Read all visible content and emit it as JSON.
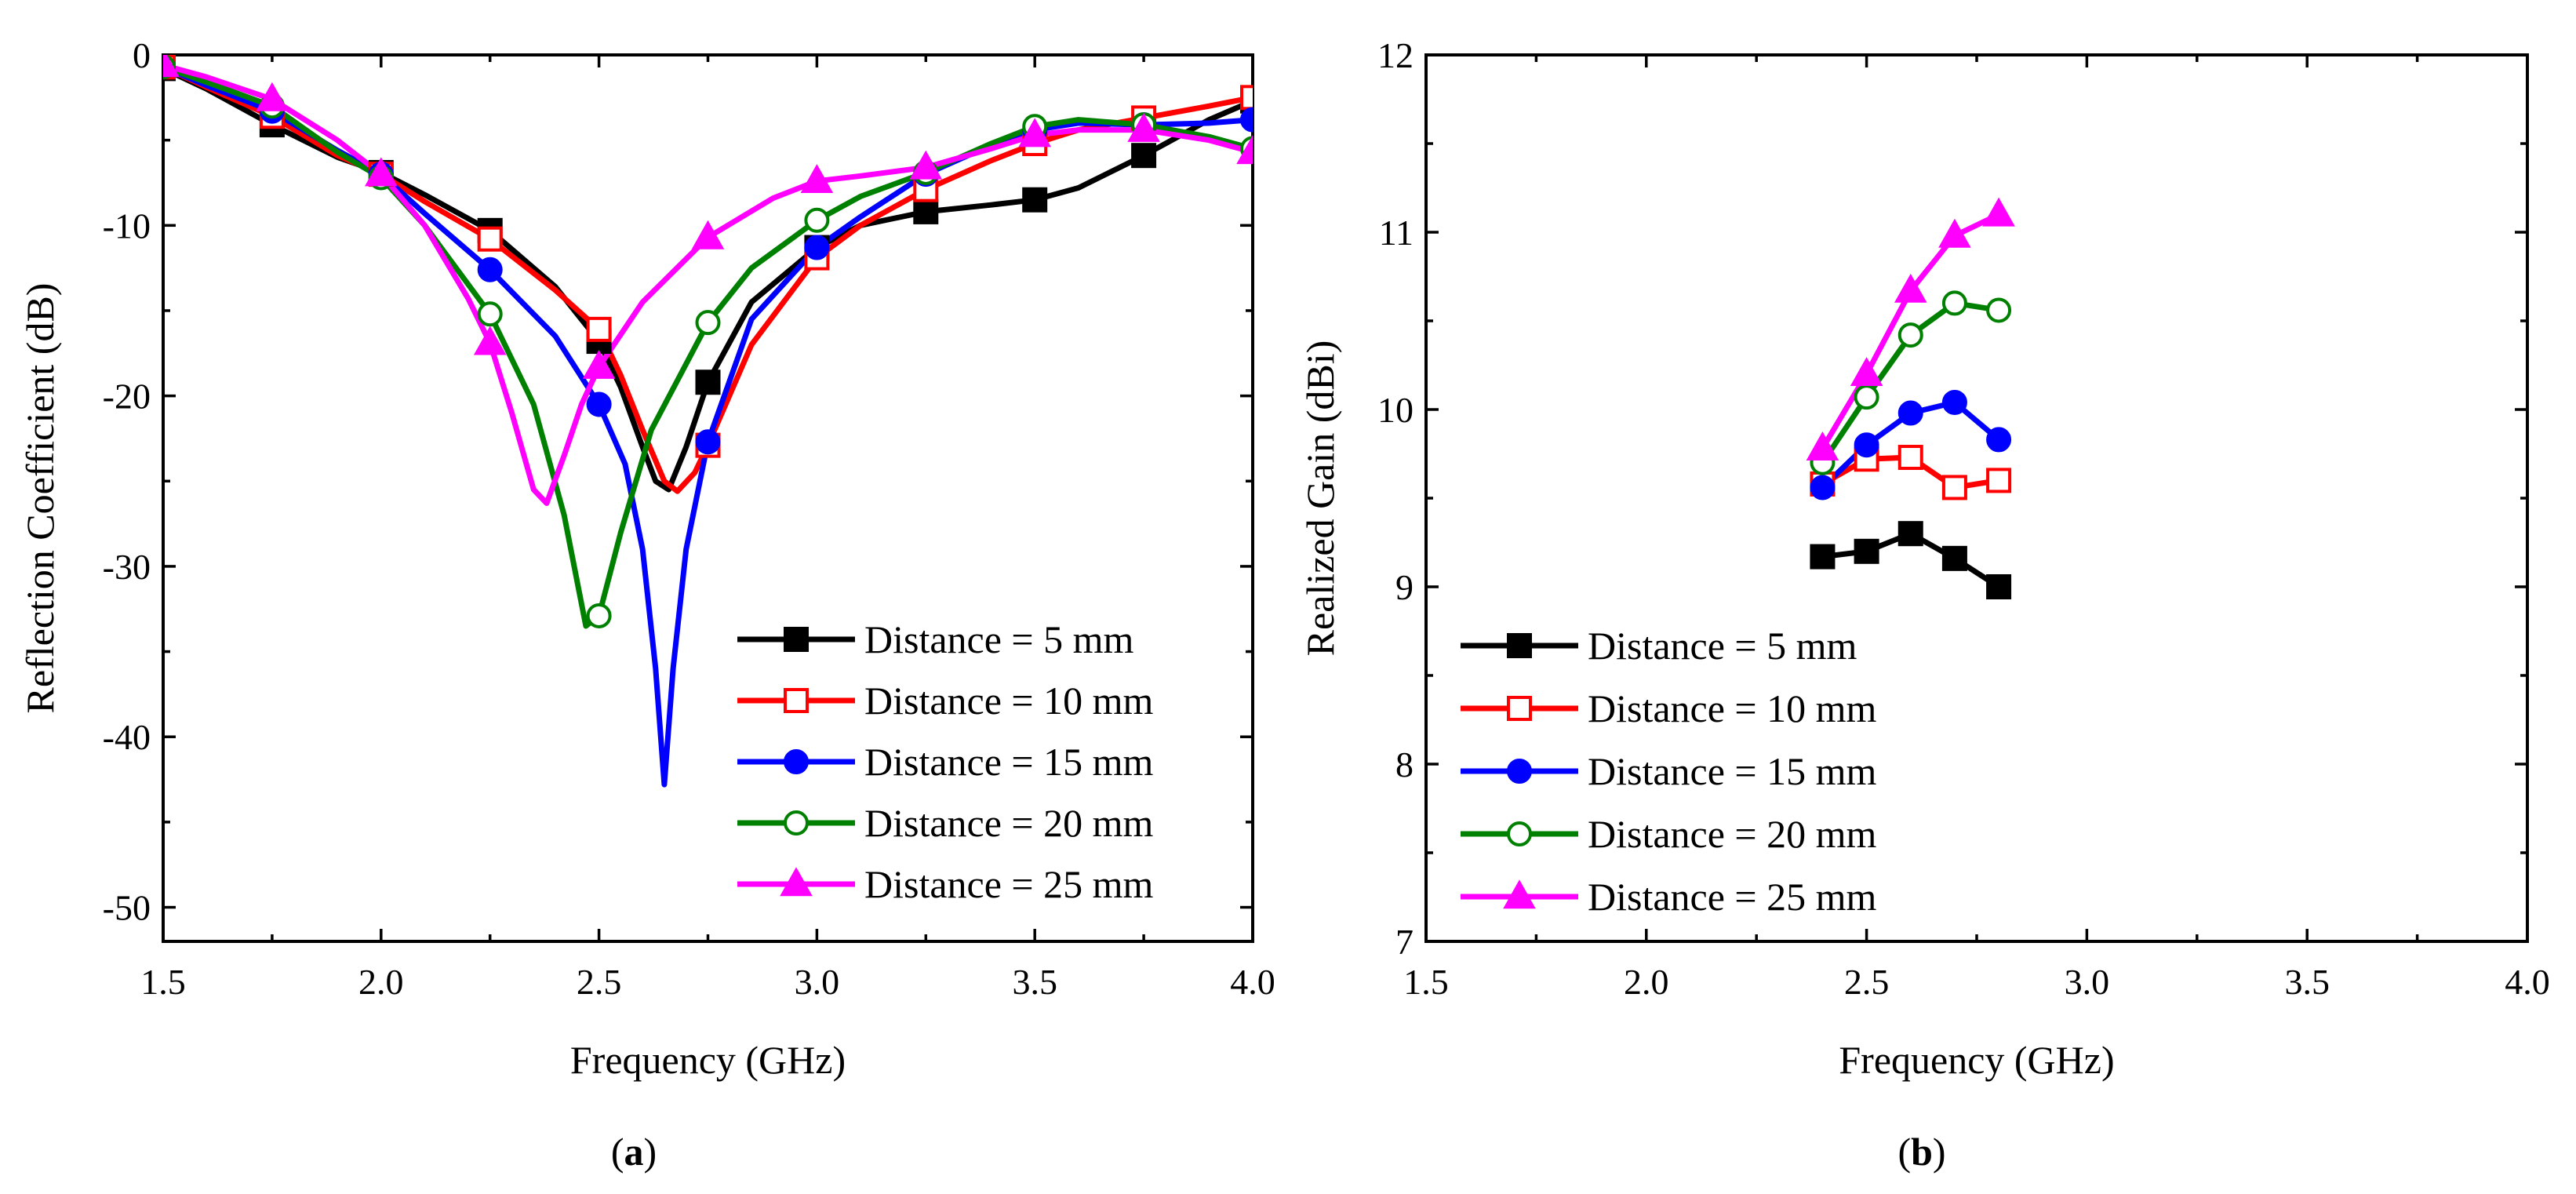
{
  "colors": {
    "d5": "#000000",
    "d10": "#ff0000",
    "d15": "#0000ff",
    "d20": "#008000",
    "d25": "#ff00ff"
  },
  "captions": {
    "a": "a",
    "b": "b"
  },
  "chart_data": [
    {
      "id": "a",
      "type": "line",
      "xlabel": "Frequency (GHz)",
      "ylabel": "Reflection Coefficient (dB)",
      "xlim": [
        1.5,
        4.0
      ],
      "ylim": [
        -52,
        0
      ],
      "xticks": [
        1.5,
        2.0,
        2.5,
        3.0,
        3.5,
        4.0
      ],
      "xtick_labels": [
        "1.5",
        "2.0",
        "2.5",
        "3.0",
        "3.5",
        "4.0"
      ],
      "yticks": [
        0,
        -10,
        -20,
        -30,
        -40,
        -50
      ],
      "ytick_labels": [
        "0",
        "-10",
        "-20",
        "-30",
        "-40",
        "-50"
      ],
      "legend_position": "bottom-right",
      "series": [
        {
          "name": "Distance = 5 mm",
          "color_key": "d5",
          "marker": "square",
          "filled": true,
          "markers": {
            "x": [
              1.5,
              1.75,
              2.0,
              2.25,
              2.5,
              2.75,
              3.0,
              3.25,
              3.5,
              3.75,
              4.0
            ],
            "y": [
              -0.8,
              -4.1,
              -6.9,
              -10.3,
              -16.8,
              -19.2,
              -11.3,
              -9.2,
              -8.5,
              -5.9,
              -2.7
            ]
          },
          "curve": {
            "x": [
              1.5,
              1.6,
              1.75,
              1.9,
              2.0,
              2.1,
              2.25,
              2.4,
              2.5,
              2.55,
              2.6,
              2.63,
              2.66,
              2.7,
              2.75,
              2.85,
              3.0,
              3.1,
              3.25,
              3.4,
              3.5,
              3.6,
              3.75,
              3.9,
              4.0
            ],
            "y": [
              -0.8,
              -2.0,
              -4.1,
              -6.0,
              -6.9,
              -8.2,
              -10.3,
              -13.6,
              -16.8,
              -19.5,
              -23.0,
              -25.0,
              -25.5,
              -23.0,
              -19.2,
              -14.5,
              -11.3,
              -10.0,
              -9.2,
              -8.8,
              -8.5,
              -7.8,
              -5.9,
              -3.8,
              -2.7
            ]
          }
        },
        {
          "name": "Distance = 10 mm",
          "color_key": "d10",
          "marker": "square",
          "filled": false,
          "markers": {
            "x": [
              1.5,
              1.75,
              2.0,
              2.25,
              2.5,
              2.75,
              3.0,
              3.25,
              3.5,
              3.75,
              4.0
            ],
            "y": [
              -0.7,
              -3.6,
              -7.0,
              -10.8,
              -16.1,
              -22.9,
              -11.9,
              -7.9,
              -5.2,
              -3.7,
              -2.5
            ]
          },
          "curve": {
            "x": [
              1.5,
              1.6,
              1.75,
              1.9,
              2.0,
              2.1,
              2.25,
              2.4,
              2.5,
              2.55,
              2.6,
              2.65,
              2.68,
              2.72,
              2.75,
              2.85,
              3.0,
              3.1,
              3.25,
              3.4,
              3.5,
              3.6,
              3.75,
              3.9,
              4.0
            ],
            "y": [
              -0.7,
              -1.9,
              -3.6,
              -5.9,
              -7.0,
              -8.6,
              -10.8,
              -13.8,
              -16.1,
              -18.8,
              -22.0,
              -25.0,
              -25.6,
              -24.5,
              -22.9,
              -17.0,
              -11.9,
              -10.0,
              -7.9,
              -6.2,
              -5.2,
              -4.4,
              -3.7,
              -3.0,
              -2.5
            ]
          }
        },
        {
          "name": "Distance = 15 mm",
          "color_key": "d15",
          "marker": "circle",
          "filled": true,
          "markers": {
            "x": [
              1.5,
              1.75,
              2.0,
              2.25,
              2.5,
              2.75,
              3.0,
              3.25,
              3.5,
              3.75,
              4.0
            ],
            "y": [
              -0.7,
              -3.3,
              -7.0,
              -12.6,
              -20.5,
              -22.7,
              -11.3,
              -7.0,
              -4.4,
              -4.1,
              -3.8
            ]
          },
          "curve": {
            "x": [
              1.5,
              1.6,
              1.75,
              1.9,
              2.0,
              2.1,
              2.25,
              2.4,
              2.5,
              2.56,
              2.6,
              2.63,
              2.65,
              2.67,
              2.7,
              2.75,
              2.85,
              3.0,
              3.1,
              3.25,
              3.4,
              3.5,
              3.6,
              3.75,
              3.9,
              4.0
            ],
            "y": [
              -0.7,
              -1.8,
              -3.3,
              -5.6,
              -7.0,
              -9.3,
              -12.6,
              -16.5,
              -20.5,
              -24.0,
              -29.0,
              -36.0,
              -42.8,
              -36.0,
              -29.0,
              -22.7,
              -15.5,
              -11.3,
              -9.5,
              -7.0,
              -5.3,
              -4.4,
              -4.0,
              -4.1,
              -4.0,
              -3.8
            ]
          }
        },
        {
          "name": "Distance = 20 mm",
          "color_key": "d20",
          "marker": "circle",
          "filled": false,
          "markers": {
            "x": [
              1.5,
              1.75,
              2.0,
              2.25,
              2.5,
              2.75,
              3.0,
              3.25,
              3.5,
              3.75,
              4.0
            ],
            "y": [
              -0.7,
              -3.0,
              -7.2,
              -15.2,
              -32.9,
              -15.7,
              -9.7,
              -6.9,
              -4.2,
              -4.1,
              -5.5
            ]
          },
          "curve": {
            "x": [
              1.5,
              1.6,
              1.75,
              1.9,
              2.0,
              2.1,
              2.25,
              2.35,
              2.42,
              2.47,
              2.5,
              2.55,
              2.62,
              2.75,
              2.85,
              3.0,
              3.1,
              3.25,
              3.4,
              3.5,
              3.6,
              3.75,
              3.9,
              4.0
            ],
            "y": [
              -0.7,
              -1.6,
              -3.0,
              -5.7,
              -7.2,
              -10.0,
              -15.2,
              -20.5,
              -27.0,
              -33.5,
              -32.9,
              -28.0,
              -22.0,
              -15.7,
              -12.5,
              -9.7,
              -8.3,
              -6.9,
              -5.2,
              -4.2,
              -3.8,
              -4.1,
              -4.8,
              -5.5
            ]
          }
        },
        {
          "name": "Distance = 25 mm",
          "color_key": "d25",
          "marker": "triangle",
          "filled": true,
          "markers": {
            "x": [
              1.5,
              1.75,
              2.0,
              2.25,
              2.5,
              2.75,
              3.0,
              3.25,
              3.5,
              3.75,
              4.0
            ],
            "y": [
              -0.6,
              -2.6,
              -7.0,
              -16.9,
              -18.3,
              -10.7,
              -7.4,
              -6.6,
              -4.7,
              -4.4,
              -5.7
            ]
          },
          "curve": {
            "x": [
              1.5,
              1.6,
              1.75,
              1.9,
              2.0,
              2.1,
              2.2,
              2.25,
              2.3,
              2.35,
              2.38,
              2.42,
              2.46,
              2.5,
              2.6,
              2.75,
              2.9,
              3.0,
              3.1,
              3.25,
              3.4,
              3.5,
              3.6,
              3.75,
              3.9,
              4.0
            ],
            "y": [
              -0.6,
              -1.3,
              -2.6,
              -5.0,
              -7.0,
              -10.0,
              -14.3,
              -16.9,
              -21.0,
              -25.5,
              -26.3,
              -23.5,
              -20.5,
              -18.3,
              -14.5,
              -10.7,
              -8.4,
              -7.4,
              -7.1,
              -6.6,
              -5.5,
              -4.7,
              -4.4,
              -4.4,
              -5.0,
              -5.7
            ]
          }
        }
      ]
    },
    {
      "id": "b",
      "type": "line",
      "xlabel": "Frequency (GHz)",
      "ylabel": "Realized Gain (dBi)",
      "xlim": [
        1.5,
        4.0
      ],
      "ylim": [
        7,
        12
      ],
      "xticks": [
        1.5,
        2.0,
        2.5,
        3.0,
        3.5,
        4.0
      ],
      "xtick_labels": [
        "1.5",
        "2.0",
        "2.5",
        "3.0",
        "3.5",
        "4.0"
      ],
      "yticks": [
        7,
        8,
        9,
        10,
        11,
        12
      ],
      "ytick_labels": [
        "7",
        "8",
        "9",
        "10",
        "11",
        "12"
      ],
      "legend_position": "bottom-left",
      "series": [
        {
          "name": "Distance = 5 mm",
          "color_key": "d5",
          "marker": "square",
          "filled": true,
          "markers": {
            "x": [
              2.4,
              2.5,
              2.6,
              2.7,
              2.8
            ],
            "y": [
              9.17,
              9.2,
              9.3,
              9.16,
              9.0
            ]
          }
        },
        {
          "name": "Distance = 10 mm",
          "color_key": "d10",
          "marker": "square",
          "filled": false,
          "markers": {
            "x": [
              2.4,
              2.5,
              2.6,
              2.7,
              2.8
            ],
            "y": [
              9.58,
              9.72,
              9.73,
              9.56,
              9.6
            ]
          }
        },
        {
          "name": "Distance = 15 mm",
          "color_key": "d15",
          "marker": "circle",
          "filled": true,
          "markers": {
            "x": [
              2.4,
              2.5,
              2.6,
              2.7,
              2.8
            ],
            "y": [
              9.56,
              9.8,
              9.98,
              10.04,
              9.83
            ]
          }
        },
        {
          "name": "Distance = 20 mm",
          "color_key": "d20",
          "marker": "circle",
          "filled": false,
          "markers": {
            "x": [
              2.4,
              2.5,
              2.6,
              2.7,
              2.8
            ],
            "y": [
              9.7,
              10.07,
              10.42,
              10.6,
              10.56
            ]
          }
        },
        {
          "name": "Distance = 25 mm",
          "color_key": "d25",
          "marker": "triangle",
          "filled": true,
          "markers": {
            "x": [
              2.4,
              2.5,
              2.6,
              2.7,
              2.8
            ],
            "y": [
              9.78,
              10.2,
              10.67,
              10.98,
              11.1
            ]
          }
        }
      ]
    }
  ]
}
